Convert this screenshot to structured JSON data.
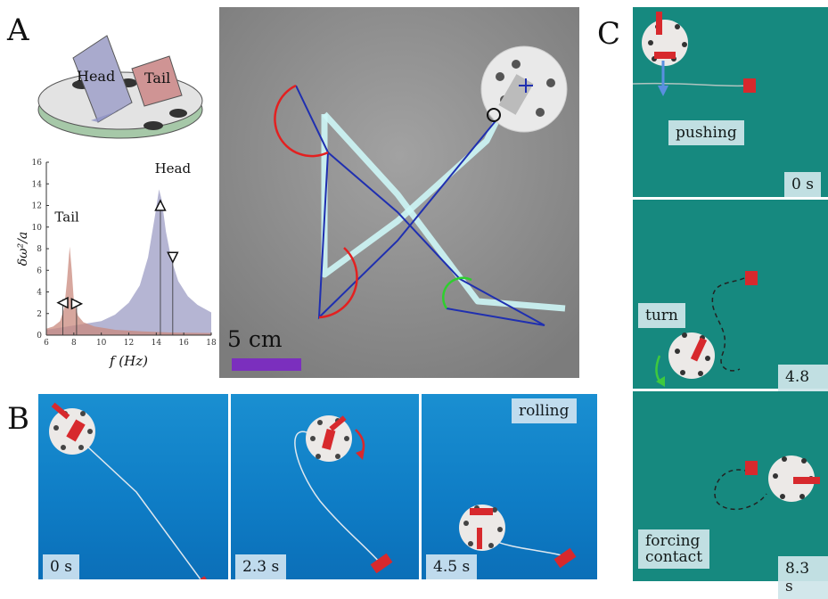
{
  "panels": {
    "a": "A",
    "b": "B",
    "c": "C"
  },
  "device": {
    "head_label": "Head",
    "tail_label": "Tail"
  },
  "chart_data": {
    "type": "area",
    "xlabel": "f (Hz)",
    "ylabel": "δω²/a",
    "xlim": [
      6,
      18
    ],
    "ylim": [
      0,
      16
    ],
    "xticks": [
      6,
      8,
      10,
      12,
      14,
      16,
      18
    ],
    "yticks": [
      0,
      2,
      4,
      6,
      8,
      10,
      12,
      14,
      16
    ],
    "series": [
      {
        "name": "Tail",
        "color": "#c98a7e",
        "x": [
          6,
          6.5,
          7,
          7.3,
          7.5,
          7.7,
          7.85,
          8.0,
          8.3,
          8.7,
          9.5,
          11,
          13,
          15,
          18
        ],
        "y": [
          0.6,
          0.8,
          1.3,
          2.5,
          5.0,
          8.2,
          6.0,
          3.2,
          1.8,
          1.2,
          0.8,
          0.5,
          0.35,
          0.25,
          0.2
        ]
      },
      {
        "name": "Head",
        "color": "#9c9cc4",
        "x": [
          6,
          8,
          10,
          11,
          12,
          12.8,
          13.4,
          13.9,
          14.2,
          14.4,
          14.7,
          15.1,
          15.6,
          16.3,
          17,
          18
        ],
        "y": [
          0.5,
          0.9,
          1.3,
          1.9,
          3.0,
          4.6,
          7.2,
          11.0,
          13.5,
          12.5,
          9.6,
          7.0,
          5.0,
          3.6,
          2.8,
          2.1
        ]
      }
    ],
    "annotations": [
      {
        "label": "Tail",
        "x": 7.5,
        "y": 10.5
      },
      {
        "label": "Head",
        "x": 15.2,
        "y": 15.0
      }
    ],
    "markers": [
      {
        "x": 7.2,
        "y": 3.0,
        "shape": "triangle-left"
      },
      {
        "x": 8.2,
        "y": 2.9,
        "shape": "triangle-right"
      },
      {
        "x": 14.3,
        "y": 12.0,
        "shape": "triangle-up"
      },
      {
        "x": 15.2,
        "y": 7.2,
        "shape": "triangle-down"
      }
    ],
    "vlines": [
      7.2,
      8.2,
      14.3,
      15.2
    ]
  },
  "scale_bar": {
    "label": "5 cm",
    "color": "#7b2fbe"
  },
  "row_b": [
    {
      "time": "0 s",
      "tag": ""
    },
    {
      "time": "2.3 s",
      "tag": ""
    },
    {
      "time": "4.5 s",
      "tag": "rolling"
    }
  ],
  "col_c": [
    {
      "time": "0 s",
      "tag": "pushing"
    },
    {
      "time": "4.8 s",
      "tag": "turn"
    },
    {
      "time": "8.3 s",
      "tag_line1": "forcing",
      "tag_line2": "contact"
    }
  ]
}
